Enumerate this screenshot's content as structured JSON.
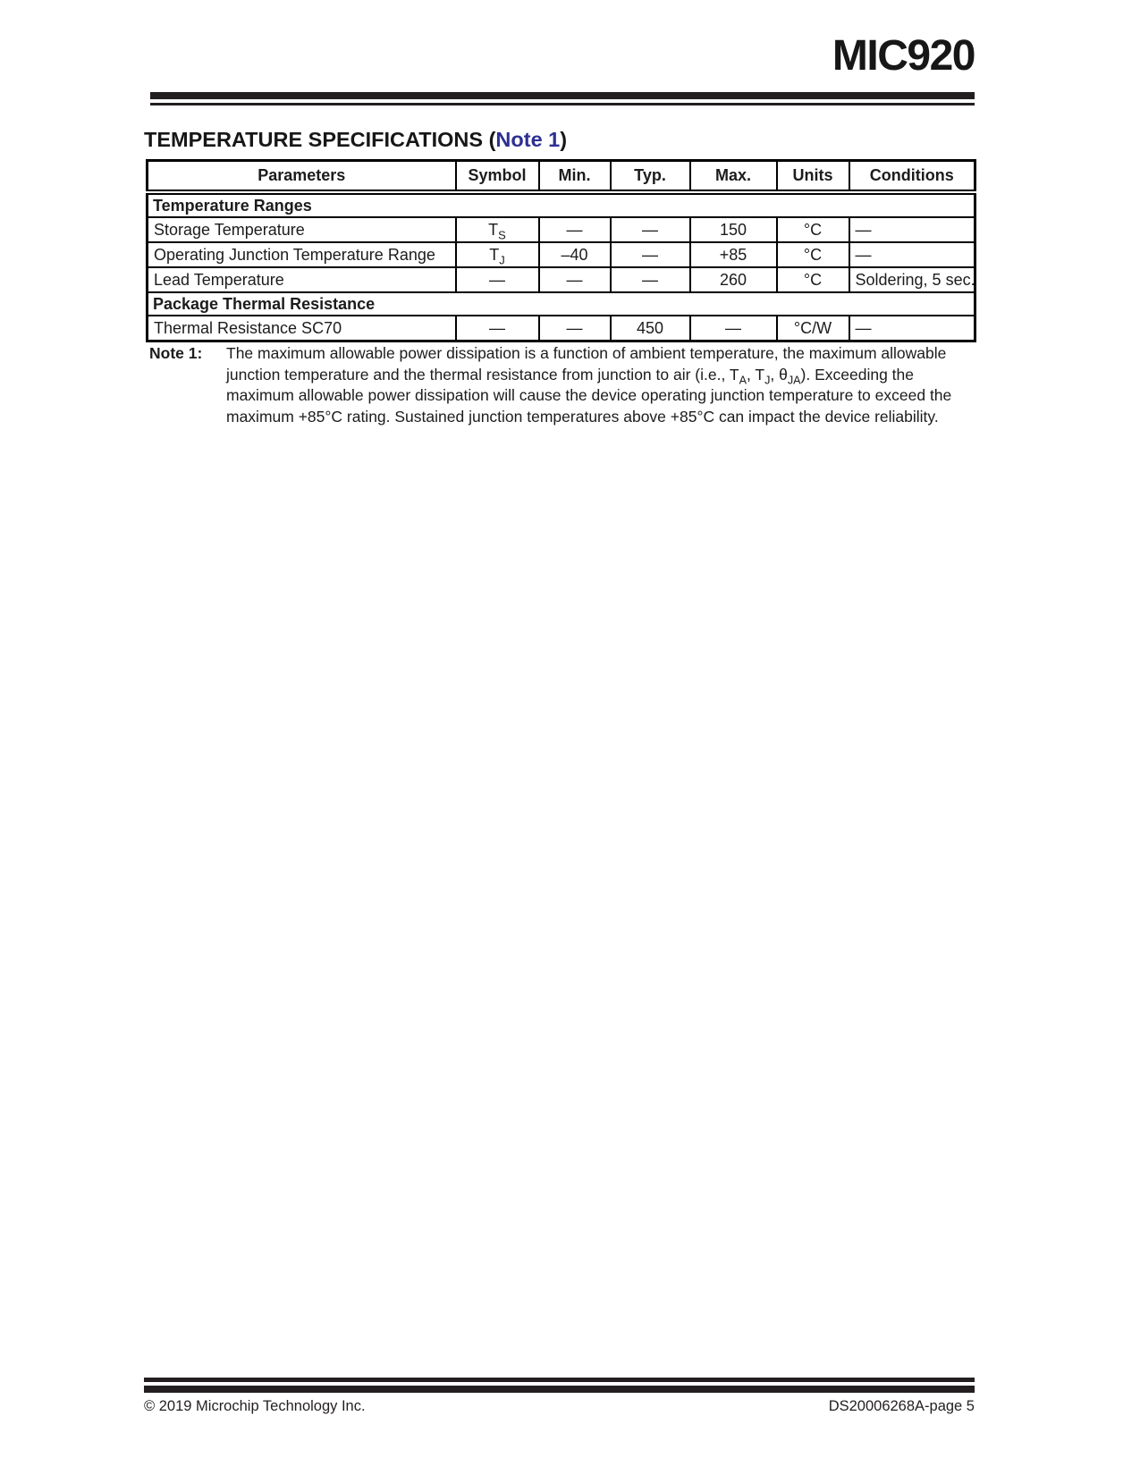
{
  "doc": {
    "title": "MIC920",
    "note_link_color": "#2d3092"
  },
  "section": {
    "heading_prefix": "TEMPERATURE SPECIFICATIONS (",
    "heading_link": "Note 1",
    "heading_suffix": ")"
  },
  "table": {
    "headers": [
      "Parameters",
      "Symbol",
      "Min.",
      "Typ.",
      "Max.",
      "Units",
      "Conditions"
    ],
    "group1_label": "Temperature Ranges",
    "group2_label": "Package Thermal Resistance",
    "rows": [
      {
        "param": "Storage Temperature",
        "symbol": [
          {
            "t": "T"
          },
          {
            "t": "S",
            "sub": true
          }
        ],
        "min": "—",
        "typ": "—",
        "max": "150",
        "units": "°C",
        "cond": "—"
      },
      {
        "param": "Operating Junction Temperature Range",
        "symbol": [
          {
            "t": "T"
          },
          {
            "t": "J",
            "sub": true
          }
        ],
        "min": "–40",
        "typ": "—",
        "max": "+85",
        "units": "°C",
        "cond": "—"
      },
      {
        "param": "Lead Temperature",
        "symbol": "—",
        "min": "—",
        "typ": "—",
        "max": "260",
        "units": "°C",
        "cond": "Soldering, 5 sec."
      },
      {
        "param": "Thermal Resistance SC70",
        "symbol": "—",
        "min": "—",
        "typ": "450",
        "max": "—",
        "units": "°C/W",
        "cond": "—"
      }
    ]
  },
  "note": {
    "label": "Note 1:",
    "segments": [
      {
        "t": "The maximum allowable power dissipation is a function of ambient temperature, the maximum allowable junction temperature and the thermal resistance from junction to air (i.e., T"
      },
      {
        "t": "A",
        "sub": true
      },
      {
        "t": ", T"
      },
      {
        "t": "J",
        "sub": true
      },
      {
        "t": ", θ"
      },
      {
        "t": "JA",
        "sub": true
      },
      {
        "t": "). Exceeding the maximum allowable power dissipation will cause the device operating junction temperature to exceed the maximum +85°C rating. Sustained junction temperatures above +85°C can impact the device reliability."
      }
    ]
  },
  "footer": {
    "left": "© 2019 Microchip Technology Inc.",
    "right": "DS20006268A-page 5"
  }
}
